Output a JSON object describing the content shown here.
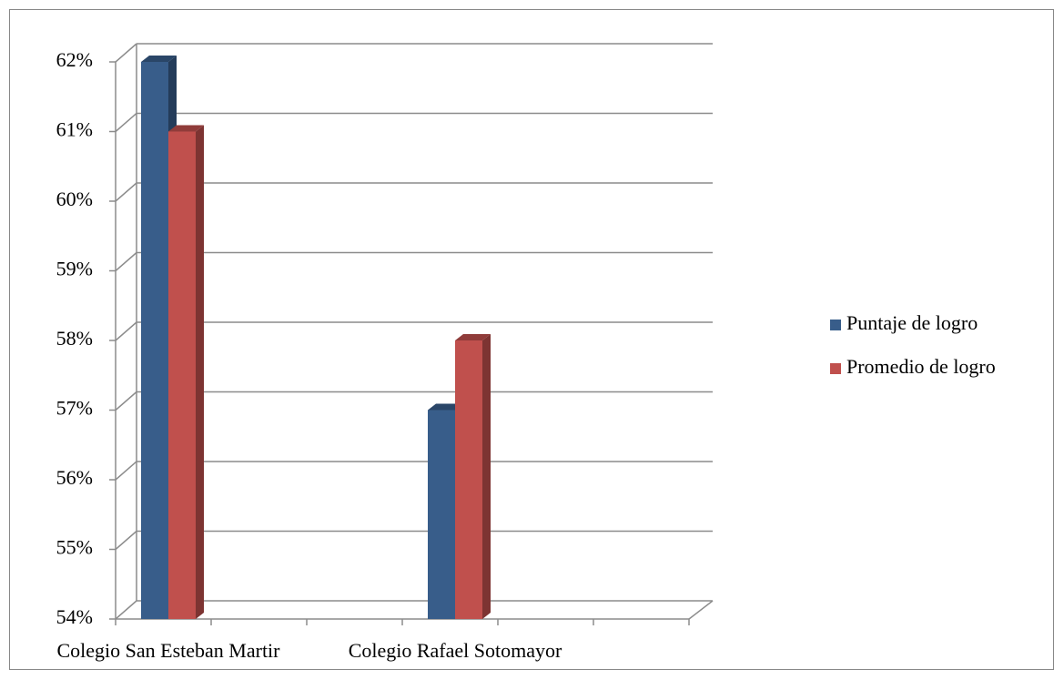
{
  "chart_data": {
    "type": "bar",
    "categories": [
      "Colegio San Esteban Martir",
      null,
      null,
      "Colegio Rafael Sotomayor",
      null,
      null
    ],
    "series": [
      {
        "name": "Puntaje de logro",
        "color": "#385d8a",
        "values": [
          62,
          null,
          null,
          57,
          null,
          null
        ]
      },
      {
        "name": "Promedio de logro",
        "color": "#c0504d",
        "values": [
          61,
          null,
          null,
          58,
          null,
          null
        ]
      }
    ],
    "ylim": [
      54,
      62
    ],
    "yticks": [
      {
        "value": 54,
        "label": "54%"
      },
      {
        "value": 55,
        "label": "55%"
      },
      {
        "value": 56,
        "label": "56%"
      },
      {
        "value": 57,
        "label": "57%"
      },
      {
        "value": 58,
        "label": "58%"
      },
      {
        "value": 59,
        "label": "59%"
      },
      {
        "value": 60,
        "label": "60%"
      },
      {
        "value": 61,
        "label": "61%"
      },
      {
        "value": 62,
        "label": "62%"
      }
    ],
    "grid": true,
    "legend": "right"
  }
}
